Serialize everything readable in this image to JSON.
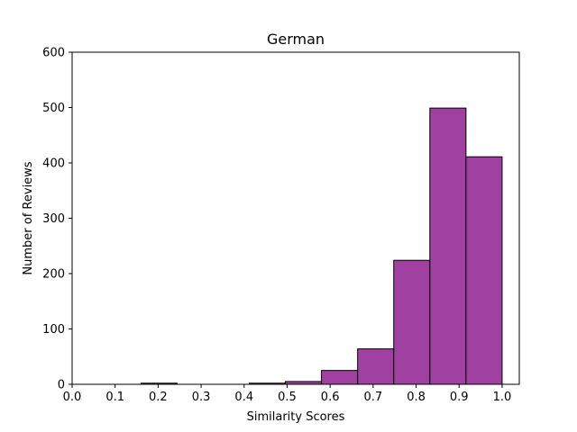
{
  "chart_data": {
    "type": "bar",
    "title": "German",
    "xlabel": "Similarity Scores",
    "ylabel": "Number of Reviews",
    "xlim": [
      0.0,
      1.04
    ],
    "ylim": [
      0,
      600
    ],
    "xticks": [
      "0.0",
      "0.1",
      "0.2",
      "0.3",
      "0.4",
      "0.5",
      "0.6",
      "0.7",
      "0.8",
      "0.9",
      "1.0"
    ],
    "yticks": [
      "0",
      "100",
      "200",
      "300",
      "400",
      "500",
      "600"
    ],
    "bins": [
      {
        "start": 0.16,
        "end": 0.244,
        "value": 2
      },
      {
        "start": 0.244,
        "end": 0.328,
        "value": 0
      },
      {
        "start": 0.328,
        "end": 0.412,
        "value": 0
      },
      {
        "start": 0.412,
        "end": 0.496,
        "value": 2
      },
      {
        "start": 0.496,
        "end": 0.58,
        "value": 5
      },
      {
        "start": 0.58,
        "end": 0.664,
        "value": 25
      },
      {
        "start": 0.664,
        "end": 0.748,
        "value": 64
      },
      {
        "start": 0.748,
        "end": 0.832,
        "value": 224
      },
      {
        "start": 0.832,
        "end": 0.916,
        "value": 499
      },
      {
        "start": 0.916,
        "end": 1.0,
        "value": 411
      }
    ],
    "bar_color": "#a040a0",
    "edge_color": "#000000",
    "grid": false,
    "legend": false
  }
}
